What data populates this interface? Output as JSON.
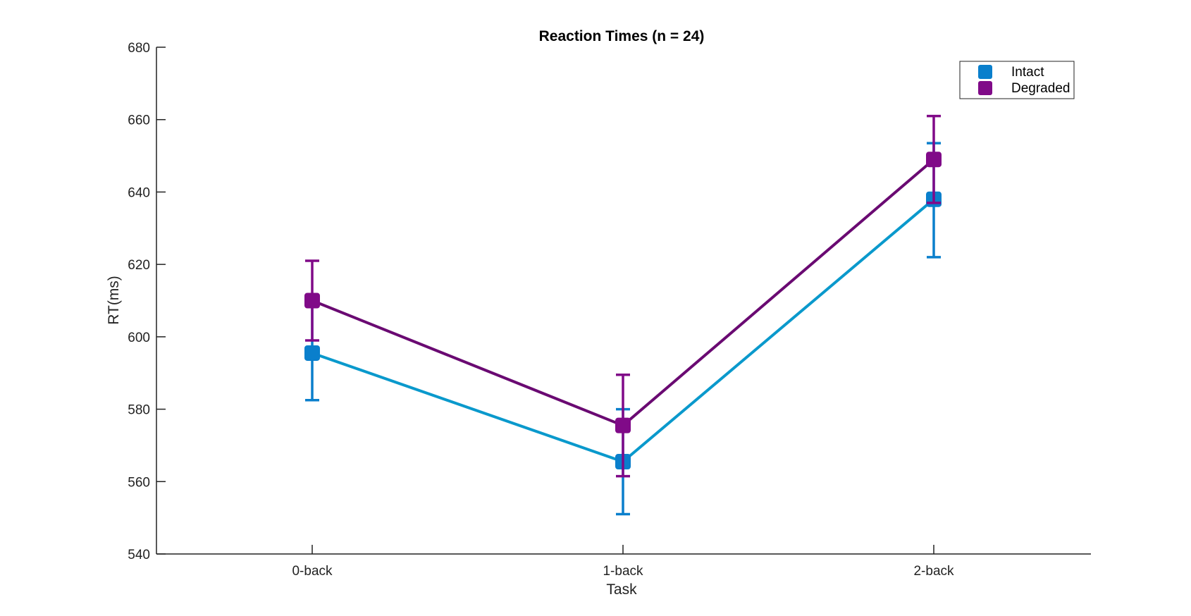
{
  "chart_data": {
    "type": "line",
    "title": "Reaction Times (n = 24)",
    "xlabel": "Task",
    "ylabel": "RT(ms)",
    "categories": [
      "0-back",
      "1-back",
      "2-back"
    ],
    "ylim": [
      540,
      680
    ],
    "yticks": [
      540,
      560,
      580,
      600,
      620,
      640,
      660,
      680
    ],
    "grid": false,
    "legend_position": "top-right",
    "series": [
      {
        "name": "Intact",
        "color": "#0a99cc",
        "marker_color": "#0a7fcc",
        "values": [
          595.5,
          565.5,
          638
        ],
        "error_lower": [
          582.5,
          551,
          622
        ],
        "error_upper": [
          608.5,
          580,
          653.5
        ]
      },
      {
        "name": "Degraded",
        "color": "#6a0a72",
        "marker_color": "#800a88",
        "values": [
          610,
          575.5,
          649
        ],
        "error_lower": [
          599,
          561.5,
          637
        ],
        "error_upper": [
          621,
          589.5,
          661
        ]
      }
    ]
  }
}
